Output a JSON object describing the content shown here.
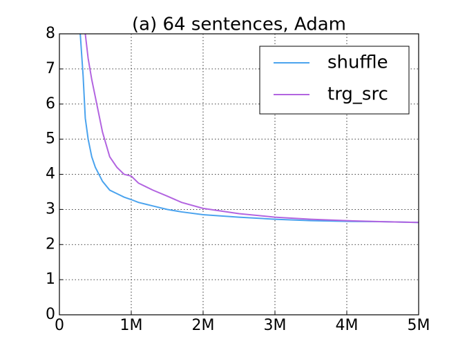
{
  "chart_data": {
    "type": "line",
    "title": "(a) 64 sentences, Adam",
    "x": [
      290000,
      330000,
      360000,
      400000,
      450000,
      500000,
      600000,
      700000,
      800000,
      900000,
      1000000,
      1100000,
      1200000,
      1300000,
      1500000,
      1700000,
      2000000,
      2500000,
      3000000,
      3500000,
      4000000,
      4500000,
      5000000
    ],
    "series": [
      {
        "name": "shuffle",
        "color": "#4aa3ee",
        "values": [
          8,
          6.8,
          5.6,
          5.0,
          4.5,
          4.2,
          3.8,
          3.55,
          3.45,
          3.35,
          3.28,
          3.2,
          3.15,
          3.1,
          3.0,
          2.93,
          2.85,
          2.78,
          2.72,
          2.68,
          2.66,
          2.65,
          2.63
        ]
      },
      {
        "name": "trg_src",
        "color": "#b264e0",
        "values": [
          null,
          null,
          8,
          7.3,
          6.7,
          6.2,
          5.2,
          4.5,
          4.2,
          4.0,
          3.95,
          3.75,
          3.65,
          3.55,
          3.38,
          3.2,
          3.03,
          2.88,
          2.78,
          2.72,
          2.68,
          2.65,
          2.63
        ]
      }
    ],
    "xlim": [
      0,
      5000000
    ],
    "xticks": [
      0,
      {
        "value": 1000000,
        "label": "1M"
      },
      {
        "value": 2000000,
        "label": "2M"
      },
      {
        "value": 3000000,
        "label": "3M"
      },
      {
        "value": 4000000,
        "label": "4M"
      },
      {
        "value": 5000000,
        "label": "5M"
      }
    ],
    "ylim": [
      0,
      8
    ],
    "yticks": [
      0,
      1,
      2,
      3,
      4,
      5,
      6,
      7,
      8
    ],
    "grid": true,
    "legend": "upper right"
  }
}
